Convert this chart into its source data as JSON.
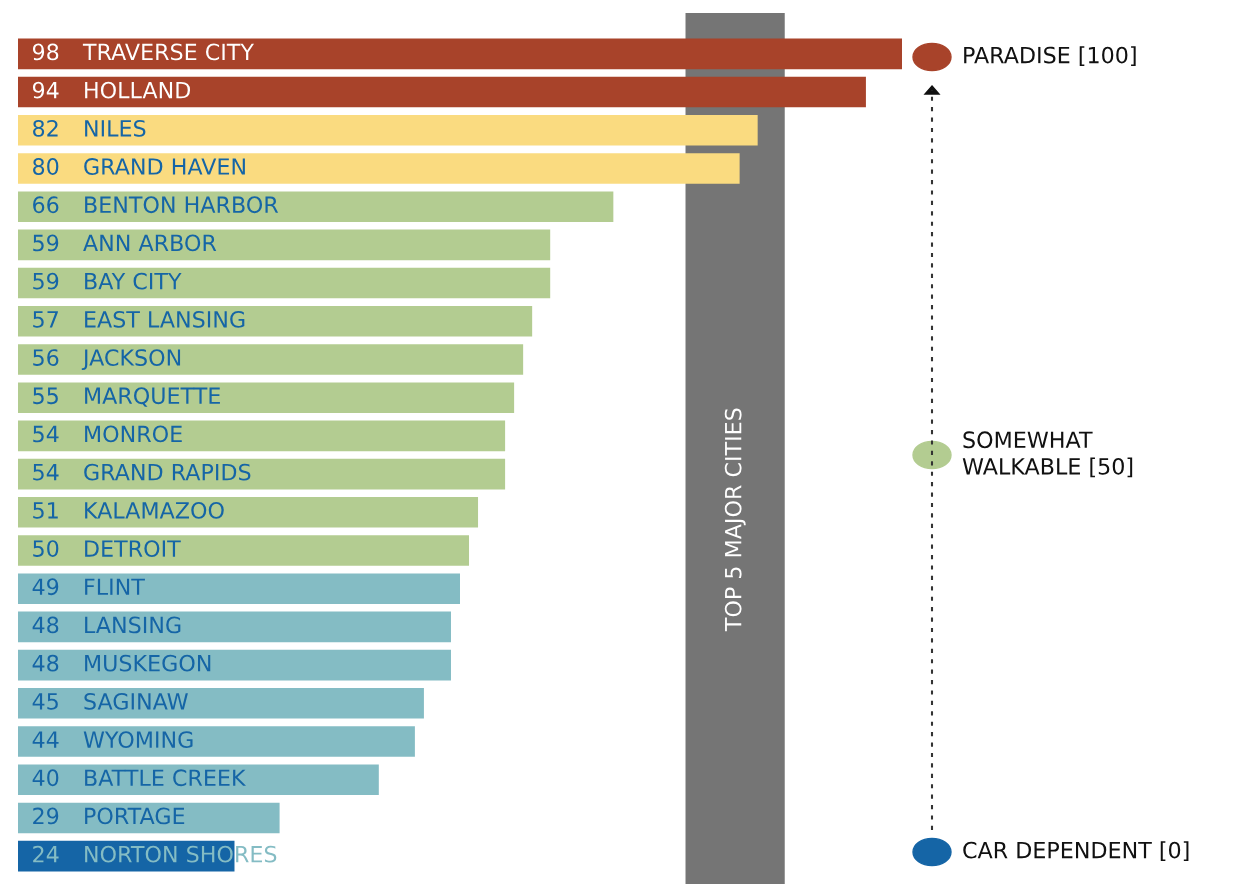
{
  "chart_data": {
    "type": "bar",
    "orientation": "horizontal",
    "categories": [
      "TRAVERSE CITY",
      "HOLLAND",
      "NILES",
      "GRAND HAVEN",
      "BENTON HARBOR",
      "ANN ARBOR",
      "BAY CITY",
      "EAST LANSING",
      "JACKSON",
      "MARQUETTE",
      "MONROE",
      "GRAND RAPIDS",
      "KALAMAZOO",
      "DETROIT",
      "FLINT",
      "LANSING",
      "MUSKEGON",
      "SAGINAW",
      "WYOMING",
      "BATTLE CREEK",
      "PORTAGE",
      "NORTON SHORES"
    ],
    "values": [
      98,
      94,
      82,
      80,
      66,
      59,
      59,
      57,
      56,
      55,
      54,
      54,
      51,
      50,
      49,
      48,
      48,
      45,
      44,
      40,
      29,
      24
    ],
    "colors": [
      "#a8432a",
      "#a8432a",
      "#fadb80",
      "#fadb80",
      "#b3cc91",
      "#b3cc91",
      "#b3cc91",
      "#b3cc91",
      "#b3cc91",
      "#b3cc91",
      "#b3cc91",
      "#b3cc91",
      "#b3cc91",
      "#b3cc91",
      "#84bcc4",
      "#84bcc4",
      "#84bcc4",
      "#84bcc4",
      "#84bcc4",
      "#84bcc4",
      "#84bcc4",
      "#1565a6"
    ],
    "data_labels": true,
    "bands": [
      {
        "axis": "x",
        "from": 74,
        "to": 85,
        "label": "TOP 5 MAJOR CITIES",
        "color": "#757575"
      }
    ],
    "annotations": [
      "PARADISE [100]",
      "SOMEWHAT\nWALKABLE [50]",
      "CAR DEPENDENT [0]"
    ]
  }
}
